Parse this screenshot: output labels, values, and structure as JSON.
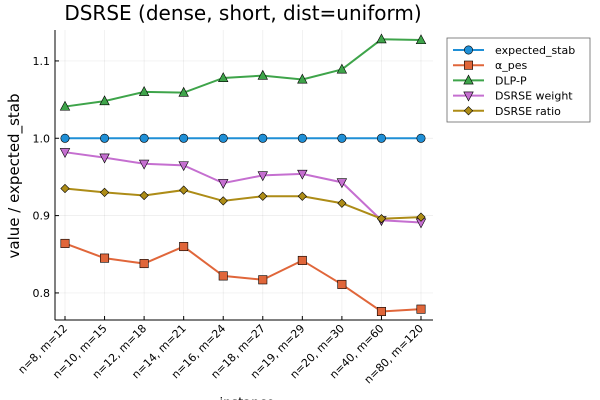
{
  "chart_data": {
    "type": "line",
    "title": "DSRSE (dense, short, dist=uniform)",
    "xlabel": "instance",
    "ylabel": "value / expected_stab",
    "categories": [
      "n=8, m=12",
      "n=10, m=15",
      "n=12, m=18",
      "n=14, m=21",
      "n=16, m=24",
      "n=18, m=27",
      "n=19, m=29",
      "n=20, m=30",
      "n=40, m=60",
      "n=80, m=120"
    ],
    "ylim": [
      0.765,
      1.14
    ],
    "yticks": [
      0.8,
      0.9,
      1.0,
      1.1
    ],
    "ytick_labels": [
      "0.8",
      "0.9",
      "1.0",
      "1.1"
    ],
    "grid": true,
    "legend_position": "top-right",
    "series": [
      {
        "name": "expected_stab",
        "color": "#1f8fd6",
        "marker": "circle",
        "values": [
          1.0,
          1.0,
          1.0,
          1.0,
          1.0,
          1.0,
          1.0,
          1.0,
          1.0,
          1.0
        ]
      },
      {
        "name": "α_pes",
        "color": "#e0663a",
        "marker": "square",
        "values": [
          0.864,
          0.845,
          0.838,
          0.86,
          0.822,
          0.817,
          0.842,
          0.811,
          0.776,
          0.779
        ]
      },
      {
        "name": "DLP-P",
        "color": "#3ea44a",
        "marker": "triangle-up",
        "values": [
          1.041,
          1.048,
          1.06,
          1.059,
          1.078,
          1.081,
          1.076,
          1.089,
          1.128,
          1.127
        ]
      },
      {
        "name": "DSRSE weight",
        "color": "#c56fd0",
        "marker": "triangle-down",
        "values": [
          0.982,
          0.975,
          0.967,
          0.965,
          0.942,
          0.952,
          0.954,
          0.943,
          0.894,
          0.891
        ]
      },
      {
        "name": "DSRSE ratio",
        "color": "#ad8c17",
        "marker": "diamond",
        "values": [
          0.935,
          0.93,
          0.926,
          0.933,
          0.919,
          0.925,
          0.925,
          0.916,
          0.896,
          0.898
        ]
      }
    ]
  }
}
